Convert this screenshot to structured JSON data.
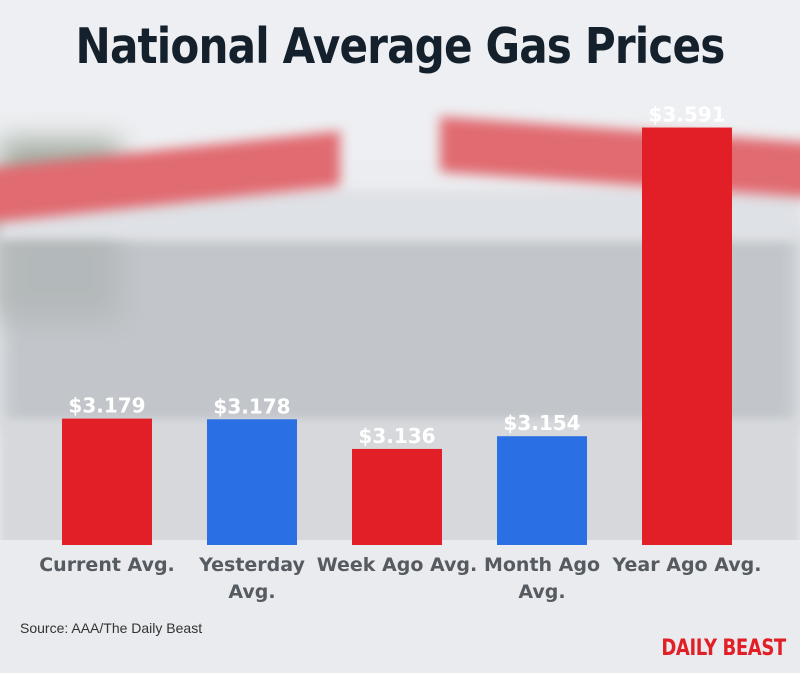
{
  "title": "National Average Gas Prices",
  "source": "Source: AAA/The Daily Beast",
  "brand": "DAILY BEAST",
  "colors": {
    "red": "#e21f26",
    "blue": "#2a6fe3",
    "title": "#14202c",
    "brand": "#e21f26"
  },
  "chart_data": {
    "type": "bar",
    "title": "National Average Gas Prices",
    "ylabel": "",
    "xlabel": "",
    "ylim": [
      3.0,
      3.63
    ],
    "grid": false,
    "categories": [
      {
        "lines": [
          "Current Avg."
        ]
      },
      {
        "lines": [
          "Yesterday",
          "Avg."
        ]
      },
      {
        "lines": [
          "Week Ago Avg."
        ]
      },
      {
        "lines": [
          "Month Ago",
          "Avg."
        ]
      },
      {
        "lines": [
          "Year Ago Avg."
        ]
      }
    ],
    "values": [
      3.179,
      3.178,
      3.136,
      3.154,
      3.591
    ],
    "labels": [
      "$3.179",
      "$3.178",
      "$3.136",
      "$3.154",
      "$3.591"
    ],
    "bar_colors": [
      "red",
      "blue",
      "red",
      "blue",
      "red"
    ]
  }
}
